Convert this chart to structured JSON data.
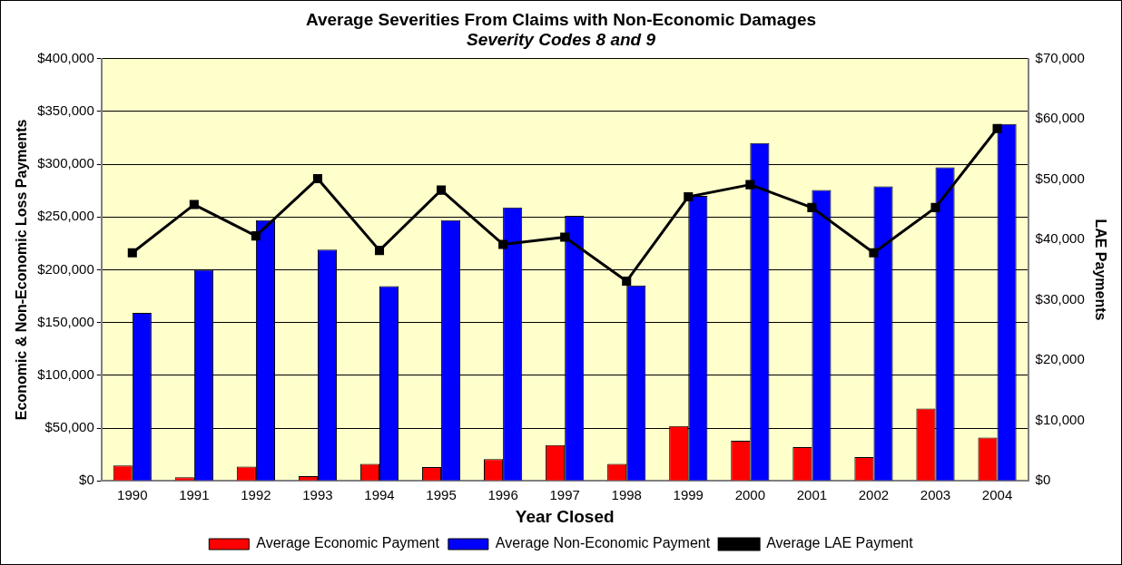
{
  "chart_data": {
    "type": "bar",
    "title": "Average Severities From Claims with Non-Economic Damages",
    "subtitle": "Severity Codes 8 and 9",
    "xlabel": "Year Closed",
    "ylabel": "Economic & Non-Economic Loss Payments",
    "y2label": "LAE Payments",
    "categories": [
      "1990",
      "1991",
      "1992",
      "1993",
      "1994",
      "1995",
      "1996",
      "1997",
      "1998",
      "1999",
      "2000",
      "2001",
      "2002",
      "2003",
      "2004"
    ],
    "series": [
      {
        "name": "Average Economic Payment",
        "color": "#ff0000",
        "values": [
          14500,
          3500,
          13500,
          4500,
          16000,
          13000,
          20600,
          33900,
          16000,
          52000,
          38000,
          32000,
          22600,
          68400,
          41000
        ]
      },
      {
        "name": "Average Non-Economic Payment",
        "color": "#0000ff",
        "values": [
          159000,
          200000,
          247000,
          219000,
          184500,
          247000,
          259000,
          251000,
          185000,
          270000,
          320000,
          275500,
          279000,
          297000,
          338000
        ]
      },
      {
        "name": "Average LAE Payment",
        "type": "line",
        "axis": "y2",
        "color": "#000000",
        "marker": "square",
        "values": [
          37800,
          45800,
          40600,
          50100,
          38200,
          48200,
          39200,
          40400,
          33100,
          47100,
          49100,
          45300,
          37800,
          45300,
          58400
        ]
      }
    ],
    "ylim": [
      0,
      400000
    ],
    "yticks": [
      {
        "value": 0,
        "label": "$0"
      },
      {
        "value": 50000,
        "label": "$50,000"
      },
      {
        "value": 100000,
        "label": "$100,000"
      },
      {
        "value": 150000,
        "label": "$150,000"
      },
      {
        "value": 200000,
        "label": "$200,000"
      },
      {
        "value": 250000,
        "label": "$250,000"
      },
      {
        "value": 300000,
        "label": "$300,000"
      },
      {
        "value": 350000,
        "label": "$350,000"
      },
      {
        "value": 400000,
        "label": "$400,000"
      }
    ],
    "y2lim": [
      0,
      70000
    ],
    "y2ticks": [
      {
        "value": 0,
        "label": "$0"
      },
      {
        "value": 10000,
        "label": "$10,000"
      },
      {
        "value": 20000,
        "label": "$20,000"
      },
      {
        "value": 30000,
        "label": "$30,000"
      },
      {
        "value": 40000,
        "label": "$40,000"
      },
      {
        "value": 50000,
        "label": "$50,000"
      },
      {
        "value": 60000,
        "label": "$60,000"
      },
      {
        "value": 70000,
        "label": "$70,000"
      }
    ],
    "grid": "y",
    "legend": "bottom"
  }
}
